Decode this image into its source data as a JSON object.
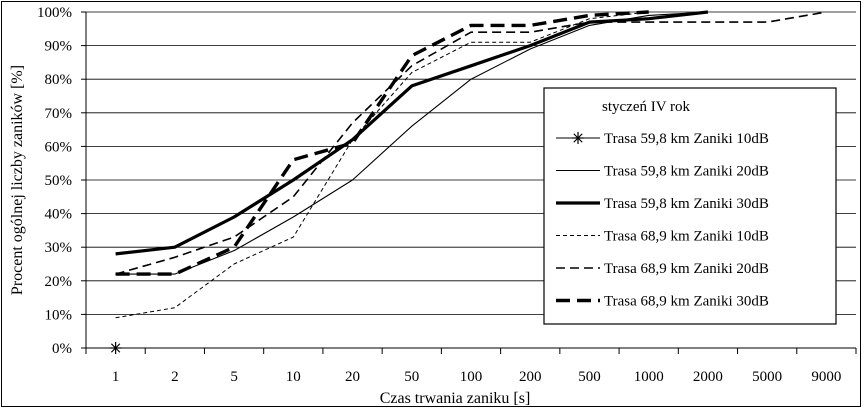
{
  "chart_data": {
    "type": "line",
    "title": "",
    "xlabel": "Czas trwania zaniku [s]",
    "ylabel": "Procent ogólnej liczby zaników [%]",
    "categories": [
      "1",
      "2",
      "5",
      "10",
      "20",
      "50",
      "100",
      "200",
      "500",
      "1000",
      "2000",
      "5000",
      "9000"
    ],
    "ylim": [
      0,
      100
    ],
    "yticks": [
      0,
      10,
      20,
      30,
      40,
      50,
      60,
      70,
      80,
      90,
      100
    ],
    "y_tick_suffix": "%",
    "grid": "horizontal",
    "legend": {
      "title": "styczeń  IV rok",
      "placement": "right"
    },
    "series": [
      {
        "name": "Trasa 59,8 km Zaniki 10dB",
        "values": [
          0,
          null,
          null,
          null,
          null,
          null,
          null,
          null,
          null,
          null,
          null,
          null,
          null
        ],
        "style": "star-marker",
        "color": "#000000"
      },
      {
        "name": "Trasa 59,8 km Zaniki 20dB",
        "values": [
          22,
          22,
          29,
          39,
          50,
          66,
          80,
          89,
          96,
          99,
          100,
          null,
          null
        ],
        "style": "thin-solid",
        "color": "#000000"
      },
      {
        "name": "Trasa 59,8 km Zaniki 30dB",
        "values": [
          28,
          30,
          39,
          50,
          62,
          78,
          84,
          90,
          97,
          98,
          100,
          null,
          null
        ],
        "style": "thick-solid",
        "color": "#000000"
      },
      {
        "name": "Trasa 68,9 km Zaniki 10dB",
        "values": [
          9,
          12,
          25,
          33,
          62,
          82,
          91,
          91,
          98,
          100,
          null,
          null,
          null
        ],
        "style": "thin-dash",
        "color": "#000000"
      },
      {
        "name": "Trasa 68,9 km Zaniki 20dB",
        "values": [
          22,
          27,
          33,
          45,
          67,
          84,
          94,
          94,
          97,
          97,
          97,
          97,
          100
        ],
        "style": "medium-dash",
        "color": "#000000"
      },
      {
        "name": "Trasa 68,9 km Zaniki 30dB",
        "values": [
          22,
          22,
          30,
          56,
          61,
          87,
          96,
          96,
          99,
          100,
          null,
          null,
          null
        ],
        "style": "thick-dash",
        "color": "#000000"
      }
    ]
  }
}
